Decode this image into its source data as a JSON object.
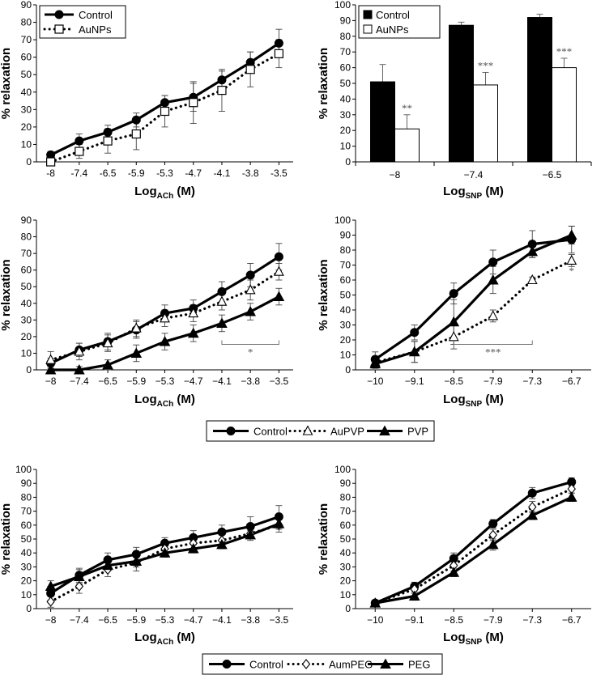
{
  "figure": {
    "y_axis_label": "% relaxation",
    "ach_label": {
      "main": "Log",
      "sub": "ACh",
      "unit": " (M)"
    },
    "snp_label": {
      "main": "Log",
      "sub": "SNP",
      "unit": " (M)"
    }
  },
  "chart_data": [
    {
      "type": "line",
      "title": "",
      "xlabel": "Log ACh (M)",
      "ylabel": "% relaxation",
      "ylim": [
        0,
        90
      ],
      "yticks": [
        0,
        10,
        20,
        30,
        40,
        50,
        60,
        70,
        80,
        90
      ],
      "x": [
        "-8",
        "-7.4",
        "-6.5",
        "-5.9",
        "-5.3",
        "-4.7",
        "-4.1",
        "-3.8",
        "-3.5"
      ],
      "series": [
        {
          "name": "Control",
          "marker": "circle",
          "style": "solid",
          "values": [
            4,
            12,
            17,
            24,
            34,
            37,
            47,
            57,
            68
          ],
          "errors": [
            2,
            4,
            4,
            4,
            4,
            8,
            5,
            6,
            8
          ]
        },
        {
          "name": "AuNPs",
          "marker": "square-open",
          "style": "dotted",
          "values": [
            0,
            6,
            12,
            16,
            29,
            34,
            41,
            53,
            62
          ],
          "errors": [
            2,
            4,
            7,
            9,
            9,
            12,
            12,
            10,
            8
          ]
        }
      ],
      "legend": [
        "Control",
        "AuNPs"
      ],
      "legend_position": "top-left",
      "annotations": []
    },
    {
      "type": "bar",
      "title": "",
      "xlabel": "Log SNP (M)",
      "ylabel": "% relaxation",
      "ylim": [
        0,
        100
      ],
      "yticks": [
        0,
        10,
        20,
        30,
        40,
        50,
        60,
        70,
        80,
        90,
        100
      ],
      "categories": [
        "−8",
        "−7.4",
        "−6.5"
      ],
      "series": [
        {
          "name": "Control",
          "color": "#000000",
          "values": [
            51,
            87,
            92
          ],
          "errors": [
            11,
            2,
            2
          ]
        },
        {
          "name": "AuNPs",
          "color": "#ffffff",
          "values": [
            21,
            49,
            60
          ],
          "errors": [
            9,
            8,
            6
          ]
        }
      ],
      "legend": [
        "Control",
        "AuNPs"
      ],
      "legend_position": "top-left",
      "significance": [
        "**",
        "***",
        "***"
      ]
    },
    {
      "type": "line",
      "title": "",
      "xlabel": "Log ACh (M)",
      "ylabel": "% relaxation",
      "ylim": [
        0,
        90
      ],
      "yticks": [
        0,
        10,
        20,
        30,
        40,
        50,
        60,
        70,
        80,
        90
      ],
      "x": [
        "−8",
        "−7.4",
        "−6.5",
        "−5.9",
        "−5.3",
        "−4.7",
        "−4.1",
        "−3.8",
        "−3.5"
      ],
      "series": [
        {
          "name": "Control",
          "marker": "circle",
          "style": "solid",
          "values": [
            4,
            12,
            17,
            24,
            34,
            37,
            47,
            57,
            68
          ],
          "errors": [
            3,
            4,
            5,
            5,
            5,
            5,
            6,
            7,
            8
          ]
        },
        {
          "name": "AuPVP",
          "marker": "triangle-open",
          "style": "dotted",
          "values": [
            6,
            11,
            16,
            25,
            31,
            34,
            41,
            48,
            59
          ],
          "errors": [
            5,
            5,
            5,
            5,
            5,
            5,
            5,
            6,
            5
          ]
        },
        {
          "name": "PVP",
          "marker": "triangle",
          "style": "solid",
          "values": [
            0,
            0,
            3,
            10,
            17,
            22,
            28,
            35,
            44
          ],
          "errors": [
            2,
            2,
            3,
            5,
            5,
            5,
            5,
            5,
            5
          ]
        }
      ],
      "annotations": [
        {
          "text": "*",
          "bracket_from": "−4.1",
          "bracket_to": "−3.5"
        }
      ]
    },
    {
      "type": "line",
      "title": "",
      "xlabel": "Log SNP (M)",
      "ylabel": "% relaxation",
      "ylim": [
        0,
        100
      ],
      "yticks": [
        0,
        10,
        20,
        30,
        40,
        50,
        60,
        70,
        80,
        90,
        100
      ],
      "x": [
        "−10",
        "−9.1",
        "−8.5",
        "−7.9",
        "−7.3",
        "−6.7"
      ],
      "series": [
        {
          "name": "Control",
          "marker": "circle",
          "style": "solid",
          "values": [
            7,
            25,
            51,
            72,
            84,
            87
          ],
          "errors": [
            5,
            5,
            7,
            8,
            9,
            9
          ]
        },
        {
          "name": "AuPVP",
          "marker": "triangle-open",
          "style": "dotted",
          "values": [
            5,
            12,
            22,
            36,
            60,
            73
          ],
          "errors": [
            3,
            7,
            8,
            4,
            2,
            4
          ]
        },
        {
          "name": "PVP",
          "marker": "triangle",
          "style": "solid",
          "values": [
            4,
            12,
            32,
            60,
            79,
            90
          ],
          "errors": [
            3,
            7,
            15,
            9,
            4,
            6
          ]
        }
      ],
      "annotations": [
        {
          "text": "***",
          "bracket_from": "−8.5",
          "bracket_to": "−7.3"
        },
        {
          "text": "*",
          "at": "−6.7"
        }
      ]
    },
    {
      "type": "line",
      "title": "",
      "xlabel": "Log ACh (M)",
      "ylabel": "% relaxation",
      "ylim": [
        0,
        100
      ],
      "yticks": [
        0,
        10,
        20,
        30,
        40,
        50,
        60,
        70,
        80,
        90,
        100
      ],
      "x": [
        "−8",
        "−7.4",
        "−6.5",
        "−5.9",
        "−5.3",
        "−4.7",
        "−4.1",
        "−3.8",
        "−3.5"
      ],
      "series": [
        {
          "name": "Control",
          "marker": "circle",
          "style": "solid",
          "values": [
            11,
            24,
            35,
            39,
            47,
            51,
            55,
            59,
            66
          ],
          "errors": [
            5,
            5,
            5,
            5,
            4,
            5,
            5,
            7,
            8
          ]
        },
        {
          "name": "AumPEG",
          "marker": "diamond-open",
          "style": "dotted",
          "values": [
            5,
            16,
            28,
            33,
            43,
            47,
            49,
            54,
            60
          ],
          "errors": [
            4,
            5,
            5,
            6,
            5,
            5,
            5,
            5,
            5
          ]
        },
        {
          "name": "PEG",
          "marker": "triangle",
          "style": "solid",
          "values": [
            16,
            23,
            31,
            34,
            40,
            43,
            46,
            53,
            61
          ],
          "errors": [
            4,
            5,
            4,
            4,
            3,
            3,
            3,
            3,
            4
          ]
        }
      ],
      "annotations": []
    },
    {
      "type": "line",
      "title": "",
      "xlabel": "Log SNP (M)",
      "ylabel": "% relaxation",
      "ylim": [
        0,
        100
      ],
      "yticks": [
        0,
        10,
        20,
        30,
        40,
        50,
        60,
        70,
        80,
        90,
        100
      ],
      "x": [
        "−10",
        "−9.1",
        "−8.5",
        "−7.9",
        "−7.3",
        "−6.7"
      ],
      "series": [
        {
          "name": "Control",
          "marker": "circle",
          "style": "solid",
          "values": [
            4,
            16,
            36,
            61,
            83,
            91
          ],
          "errors": [
            2,
            3,
            4,
            3,
            4,
            3
          ]
        },
        {
          "name": "AumPEG",
          "marker": "diamond-open",
          "style": "dotted",
          "values": [
            4,
            14,
            31,
            53,
            73,
            86
          ],
          "errors": [
            2,
            3,
            4,
            4,
            4,
            3
          ]
        },
        {
          "name": "PEG",
          "marker": "triangle",
          "style": "solid",
          "values": [
            4,
            9,
            26,
            46,
            67,
            80
          ],
          "errors": [
            2,
            3,
            3,
            4,
            3,
            3
          ]
        }
      ],
      "annotations": []
    }
  ],
  "legends": {
    "pvp": [
      {
        "name": "Control",
        "marker": "circle",
        "style": "solid"
      },
      {
        "name": "AuPVP",
        "marker": "triangle-open",
        "style": "dotted"
      },
      {
        "name": "PVP",
        "marker": "triangle",
        "style": "solid"
      }
    ],
    "peg": [
      {
        "name": "Control",
        "marker": "circle",
        "style": "solid"
      },
      {
        "name": "AumPEG",
        "marker": "diamond-open",
        "style": "dotted"
      },
      {
        "name": "PEG",
        "marker": "triangle",
        "style": "solid"
      }
    ]
  }
}
